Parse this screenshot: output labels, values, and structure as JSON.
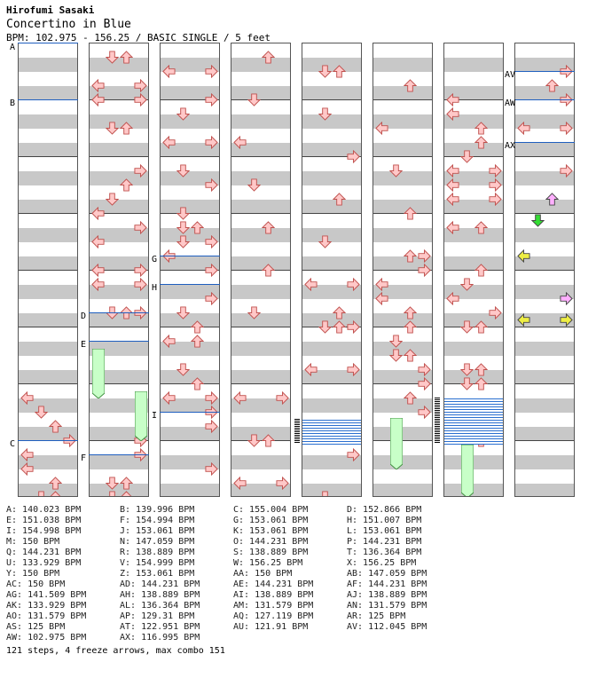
{
  "header": {
    "artist": "Hirofumi Sasaki",
    "title": "Concertino in Blue",
    "info": "BPM: 102.975 - 156.25 / BASIC SINGLE / 5 feet"
  },
  "colors": {
    "normal_arrow_fill": "#ffc8c8",
    "normal_arrow_stroke": "#c0504d",
    "freeze_fill": "#c8ffc8",
    "freeze_stroke": "#409040",
    "bpm_line": "#1f5fbf",
    "green_arrow": "#33dd33",
    "yellow_arrow": "#eeee44",
    "pink_arrow": "#ffb0ff"
  },
  "markers": [
    {
      "text": "A"
    },
    {
      "text": "B"
    },
    {
      "text": "C"
    },
    {
      "text": "D"
    },
    {
      "text": "E"
    },
    {
      "text": "F"
    },
    {
      "text": "G"
    },
    {
      "text": "H"
    },
    {
      "text": "I"
    },
    {
      "text": "AV"
    },
    {
      "text": "AW"
    },
    {
      "text": "AX"
    }
  ],
  "bpm_changes": [
    "A: 140.023 BPM",
    "B: 139.996 BPM",
    "C: 155.004 BPM",
    "D: 152.866 BPM",
    "E: 151.038 BPM",
    "F: 154.994 BPM",
    "G: 153.061 BPM",
    "H: 151.007 BPM",
    "I: 154.998 BPM",
    "J: 153.061 BPM",
    "K: 153.061 BPM",
    "L: 153.061 BPM",
    "M: 150 BPM",
    "N: 147.059 BPM",
    "O: 144.231 BPM",
    "P: 144.231 BPM",
    "Q: 144.231 BPM",
    "R: 138.889 BPM",
    "S: 138.889 BPM",
    "T: 136.364 BPM",
    "U: 133.929 BPM",
    "V: 154.999 BPM",
    "W: 156.25 BPM",
    "X: 156.25 BPM",
    "Y: 150 BPM",
    "Z: 153.061 BPM",
    "AA: 150 BPM",
    "AB: 147.059 BPM",
    "AC: 150 BPM",
    "AD: 144.231 BPM",
    "AE: 144.231 BPM",
    "AF: 144.231 BPM",
    "AG: 141.509 BPM",
    "AH: 138.889 BPM",
    "AI: 138.889 BPM",
    "AJ: 138.889 BPM",
    "AK: 133.929 BPM",
    "AL: 136.364 BPM",
    "AM: 131.579 BPM",
    "AN: 131.579 BPM",
    "AO: 131.579 BPM",
    "AP: 129.31 BPM",
    "AQ: 127.119 BPM",
    "AR: 125 BPM",
    "AS: 125 BPM",
    "AT: 122.951 BPM",
    "AU: 121.91 BPM",
    "AV: 112.045 BPM",
    "AW: 102.975 BPM",
    "AX: 116.995 BPM"
  ],
  "summary": "121 steps, 4 freeze arrows, max combo 151"
}
